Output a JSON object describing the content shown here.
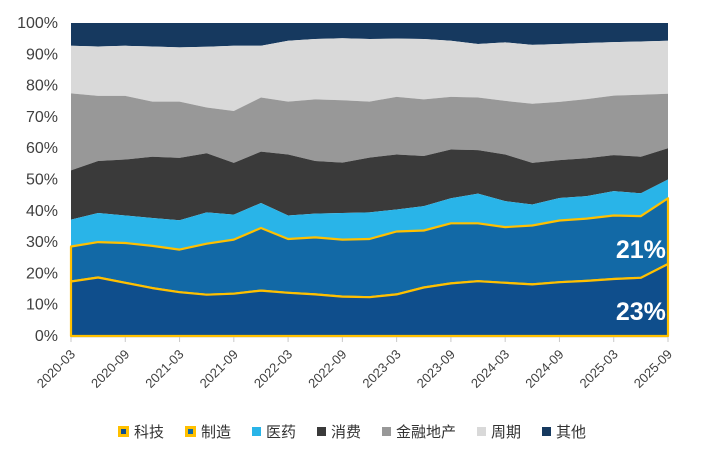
{
  "page": {
    "background": "#FFFFFF",
    "text_color": "#404040"
  },
  "chart_data": {
    "type": "area",
    "stacked": true,
    "percent_stacked": true,
    "title": "",
    "xlabel": "",
    "ylabel": "",
    "ylim": [
      0,
      100
    ],
    "grid": false,
    "legend_position": "bottom",
    "x": [
      "2020-03",
      "2020-06",
      "2020-09",
      "2020-12",
      "2021-03",
      "2021-06",
      "2021-09",
      "2021-12",
      "2022-03",
      "2022-06",
      "2022-09",
      "2022-12",
      "2023-03",
      "2023-06",
      "2023-09",
      "2023-12",
      "2024-03",
      "2024-06",
      "2024-09",
      "2024-12",
      "2025-03",
      "2025-06",
      "2025-09"
    ],
    "x_axis_tick_labels": [
      "2020-03",
      "2020-09",
      "2021-03",
      "2021-09",
      "2022-03",
      "2022-09",
      "2023-03",
      "2023-09",
      "2024-03",
      "2024-09",
      "2025-03",
      "2025-09"
    ],
    "y_axis_tick_labels": [
      "0%",
      "10%",
      "20%",
      "30%",
      "40%",
      "50%",
      "60%",
      "70%",
      "80%",
      "90%",
      "100%"
    ],
    "series": [
      {
        "id": "tech",
        "name": "科技",
        "color": "#0F4E8C",
        "border_color": "#FFC000",
        "values": [
          17.4,
          18.7,
          17.0,
          15.3,
          14.0,
          13.2,
          13.5,
          14.5,
          13.8,
          13.3,
          12.6,
          12.4,
          13.3,
          15.5,
          16.8,
          17.5,
          17.0,
          16.5,
          17.2,
          17.6,
          18.2,
          18.6,
          23.0
        ]
      },
      {
        "id": "manufacturing",
        "name": "制造",
        "color": "#1269A6",
        "border_color": "#FFC000",
        "values": [
          11.2,
          11.3,
          12.7,
          13.5,
          13.6,
          16.3,
          17.3,
          20.0,
          17.2,
          18.2,
          18.2,
          18.6,
          20.1,
          18.2,
          19.2,
          18.5,
          17.8,
          18.8,
          19.7,
          19.9,
          20.3,
          19.7,
          21.0
        ]
      },
      {
        "id": "pharma",
        "name": "医药",
        "color": "#29B4E8",
        "values": [
          8.6,
          9.3,
          8.8,
          8.9,
          9.4,
          10.0,
          8.0,
          8.0,
          7.5,
          7.6,
          8.5,
          8.5,
          7.0,
          7.8,
          8.0,
          9.5,
          8.3,
          6.7,
          7.2,
          7.2,
          7.8,
          7.3,
          6.0
        ]
      },
      {
        "id": "consumer",
        "name": "消费",
        "color": "#3A3A3A",
        "values": [
          15.7,
          16.6,
          17.9,
          19.6,
          19.9,
          18.9,
          16.5,
          16.4,
          19.5,
          16.8,
          16.1,
          17.5,
          17.6,
          16.0,
          15.6,
          13.9,
          14.9,
          13.3,
          12.1,
          12.1,
          11.5,
          11.7,
          10.0
        ]
      },
      {
        "id": "financials-real-estate",
        "name": "金融地产",
        "color": "#989898",
        "values": [
          24.6,
          20.8,
          20.3,
          17.6,
          18.0,
          14.6,
          16.6,
          17.3,
          16.9,
          19.7,
          19.9,
          17.9,
          18.4,
          18.1,
          16.8,
          16.8,
          17.1,
          18.9,
          18.6,
          18.9,
          19.0,
          19.8,
          17.4
        ]
      },
      {
        "id": "cyclicals",
        "name": "周期",
        "color": "#D9D9D9",
        "values": [
          15.2,
          15.8,
          16.0,
          17.6,
          17.3,
          19.4,
          20.8,
          16.5,
          19.4,
          19.3,
          19.8,
          20.0,
          18.6,
          19.3,
          17.9,
          17.1,
          18.7,
          18.8,
          18.5,
          17.9,
          17.1,
          17.0,
          16.9
        ]
      },
      {
        "id": "others",
        "name": "其他",
        "color": "#16395F",
        "values": [
          7.3,
          7.5,
          7.3,
          7.5,
          7.8,
          7.6,
          7.3,
          7.3,
          5.7,
          5.1,
          4.9,
          5.1,
          5.0,
          5.1,
          5.7,
          6.7,
          6.2,
          7.0,
          6.7,
          6.4,
          6.1,
          5.9,
          5.7
        ]
      }
    ],
    "annotations": [
      {
        "text": "21%",
        "series_id": "manufacturing",
        "x_index": 21,
        "y_percent": 27.8,
        "color": "#FFFFFF"
      },
      {
        "text": "23%",
        "series_id": "tech",
        "x_index": 21,
        "y_percent": 8.0,
        "color": "#FFFFFF"
      }
    ],
    "axis": {
      "tick_color": "#C9C9C9",
      "axis_line_color": "#EDE9DA",
      "label_color": "#404040"
    }
  }
}
